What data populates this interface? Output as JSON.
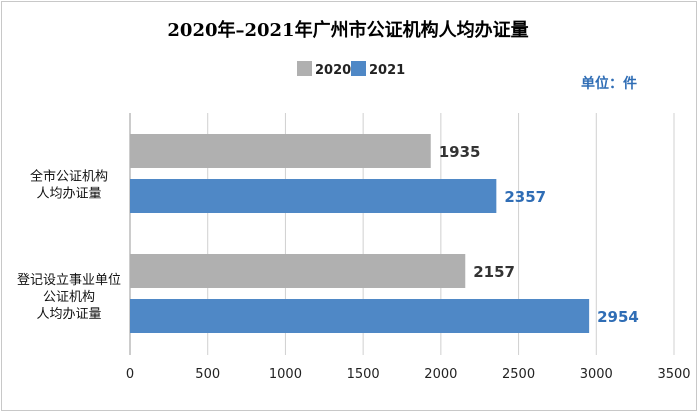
{
  "chart_data": {
    "type": "bar",
    "orientation": "horizontal",
    "title": "2020年–2021年广州市公证机构人均办证量",
    "unit_label": "单位：件",
    "categories": [
      [
        "全市公证机构",
        "人均办证量"
      ],
      [
        "登记设立事业单位",
        "公证机构",
        "人均办证量"
      ]
    ],
    "series": [
      {
        "name": "2020",
        "values": [
          1935,
          2157
        ],
        "color": "#b0b0b0",
        "label_color": "#333333"
      },
      {
        "name": "2021",
        "values": [
          2357,
          2954
        ],
        "color": "#4f88c6",
        "label_color": "#2f6db5"
      }
    ],
    "xlim": [
      0,
      3500
    ],
    "xticks": [
      0,
      500,
      1000,
      1500,
      2000,
      2500,
      3000,
      3500
    ],
    "grid": true,
    "legend_position": "top"
  }
}
